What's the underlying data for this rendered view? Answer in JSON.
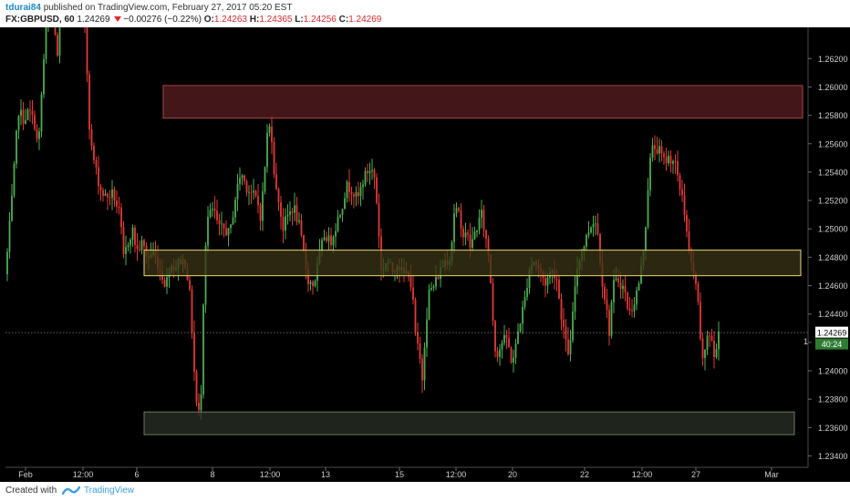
{
  "header": {
    "author": "tdurai84",
    "published_text": "published on TradingView.com, February 27, 2017 05:20 EST",
    "symbol": "FX:GBPUSD, 60",
    "last": "1.24269",
    "change": "−0.00276 (−0.22%)",
    "open_label": "O:",
    "open": "1.24263",
    "high_label": "H:",
    "high": "1.24365",
    "low_label": "L:",
    "low": "1.24256",
    "close_label": "C:",
    "close": "1.24269"
  },
  "footer": {
    "created_with": "Created with",
    "brand": "TradingView"
  },
  "colors": {
    "background": "#000000",
    "up": "#4caf50",
    "down": "#e53935",
    "axis_text": "#cfcfcf",
    "price_tag": "#ffffff",
    "countdown_tag": "#2e7d32"
  },
  "chart_data": {
    "type": "candlestick",
    "title": "",
    "xlabel": "",
    "ylabel": "",
    "ylim": [
      1.2332,
      1.2642
    ],
    "y_ticks": [
      "1.26200",
      "1.26000",
      "1.25800",
      "1.25600",
      "1.25400",
      "1.25200",
      "1.25000",
      "1.24800",
      "1.24600",
      "1.24400",
      "1.24200",
      "1.24000",
      "1.23800",
      "1.23600",
      "1.23400"
    ],
    "x_ticks": [
      "Feb",
      "12:00",
      "6",
      "8",
      "12:00",
      "13",
      "15",
      "12:00",
      "20",
      "22",
      "12:00",
      "27",
      "Mar"
    ],
    "current_price": "1.24269",
    "countdown": "40:24",
    "zones": [
      {
        "name": "supply-zone",
        "from": 1.2578,
        "to": 1.2601,
        "fill": "#5a1e22",
        "stroke": "#a84848"
      },
      {
        "name": "pivot-zone",
        "from": 1.2467,
        "to": 1.2485,
        "fill": "#3a3416",
        "stroke": "#e8d870"
      },
      {
        "name": "demand-zone",
        "from": 1.2355,
        "to": 1.2371,
        "fill": "#2a3026",
        "stroke": "#6d7a62"
      }
    ],
    "path": [
      [
        0,
        1.2438
      ],
      [
        6,
        1.2468
      ],
      [
        14,
        1.2528
      ],
      [
        20,
        1.2584
      ],
      [
        26,
        1.2577
      ],
      [
        32,
        1.2583
      ],
      [
        38,
        1.2574
      ],
      [
        42,
        1.2555
      ],
      [
        46,
        1.26
      ],
      [
        50,
        1.2638
      ],
      [
        55,
        1.2655
      ],
      [
        60,
        1.2642
      ],
      [
        63,
        1.262
      ],
      [
        67,
        1.266
      ],
      [
        90,
        1.266
      ],
      [
        94,
        1.264
      ],
      [
        97,
        1.2582
      ],
      [
        100,
        1.2558
      ],
      [
        104,
        1.2545
      ],
      [
        110,
        1.2528
      ],
      [
        116,
        1.2522
      ],
      [
        124,
        1.2525
      ],
      [
        132,
        1.2508
      ],
      [
        135,
        1.2478
      ],
      [
        140,
        1.249
      ],
      [
        145,
        1.25
      ],
      [
        150,
        1.2484
      ],
      [
        156,
        1.249
      ],
      [
        162,
        1.2479
      ],
      [
        168,
        1.2484
      ],
      [
        176,
        1.247
      ],
      [
        182,
        1.246
      ],
      [
        186,
        1.2475
      ],
      [
        192,
        1.2473
      ],
      [
        198,
        1.2478
      ],
      [
        204,
        1.2475
      ],
      [
        209,
        1.2448
      ],
      [
        212,
        1.241
      ],
      [
        215,
        1.2378
      ],
      [
        218,
        1.237
      ],
      [
        221,
        1.239
      ],
      [
        224,
        1.248
      ],
      [
        228,
        1.2508
      ],
      [
        234,
        1.2514
      ],
      [
        240,
        1.25
      ],
      [
        246,
        1.25
      ],
      [
        252,
        1.2496
      ],
      [
        258,
        1.2522
      ],
      [
        264,
        1.254
      ],
      [
        270,
        1.253
      ],
      [
        276,
        1.2525
      ],
      [
        282,
        1.252
      ],
      [
        286,
        1.2508
      ],
      [
        290,
        1.254
      ],
      [
        294,
        1.2575
      ],
      [
        298,
        1.2565
      ],
      [
        302,
        1.2528
      ],
      [
        306,
        1.252
      ],
      [
        310,
        1.25
      ],
      [
        316,
        1.251
      ],
      [
        322,
        1.2516
      ],
      [
        328,
        1.2502
      ],
      [
        334,
        1.2478
      ],
      [
        338,
        1.2464
      ],
      [
        344,
        1.246
      ],
      [
        350,
        1.248
      ],
      [
        356,
        1.2497
      ],
      [
        362,
        1.249
      ],
      [
        368,
        1.2502
      ],
      [
        374,
        1.2514
      ],
      [
        380,
        1.253
      ],
      [
        386,
        1.2528
      ],
      [
        392,
        1.252
      ],
      [
        398,
        1.2534
      ],
      [
        404,
        1.2542
      ],
      [
        410,
        1.254
      ],
      [
        414,
        1.2512
      ],
      [
        418,
        1.247
      ],
      [
        424,
        1.2478
      ],
      [
        430,
        1.247
      ],
      [
        436,
        1.2477
      ],
      [
        442,
        1.2467
      ],
      [
        448,
        1.247
      ],
      [
        452,
        1.2455
      ],
      [
        456,
        1.2422
      ],
      [
        460,
        1.241
      ],
      [
        463,
        1.2395
      ],
      [
        466,
        1.2425
      ],
      [
        470,
        1.2455
      ],
      [
        476,
        1.246
      ],
      [
        482,
        1.247
      ],
      [
        488,
        1.2478
      ],
      [
        494,
        1.248
      ],
      [
        498,
        1.2512
      ],
      [
        502,
        1.2514
      ],
      [
        506,
        1.2496
      ],
      [
        510,
        1.25
      ],
      [
        516,
        1.2487
      ],
      [
        522,
        1.25
      ],
      [
        528,
        1.251
      ],
      [
        532,
        1.2496
      ],
      [
        536,
        1.248
      ],
      [
        539,
        1.2455
      ],
      [
        542,
        1.2418
      ],
      [
        546,
        1.2412
      ],
      [
        550,
        1.242
      ],
      [
        556,
        1.2423
      ],
      [
        560,
        1.2408
      ],
      [
        564,
        1.241
      ],
      [
        568,
        1.2428
      ],
      [
        572,
        1.244
      ],
      [
        576,
        1.2452
      ],
      [
        580,
        1.2472
      ],
      [
        586,
        1.2478
      ],
      [
        592,
        1.247
      ],
      [
        598,
        1.2462
      ],
      [
        604,
        1.247
      ],
      [
        610,
        1.2468
      ],
      [
        614,
        1.2445
      ],
      [
        618,
        1.243
      ],
      [
        622,
        1.2412
      ],
      [
        626,
        1.242
      ],
      [
        630,
        1.2458
      ],
      [
        634,
        1.2478
      ],
      [
        640,
        1.2488
      ],
      [
        646,
        1.25
      ],
      [
        652,
        1.2508
      ],
      [
        656,
        1.2495
      ],
      [
        660,
        1.2465
      ],
      [
        664,
        1.2448
      ],
      [
        668,
        1.2428
      ],
      [
        672,
        1.246
      ],
      [
        678,
        1.2464
      ],
      [
        684,
        1.2458
      ],
      [
        690,
        1.244
      ],
      [
        696,
        1.245
      ],
      [
        700,
        1.246
      ],
      [
        704,
        1.2476
      ],
      [
        708,
        1.2504
      ],
      [
        712,
        1.2545
      ],
      [
        716,
        1.2558
      ],
      [
        722,
        1.2556
      ],
      [
        728,
        1.2548
      ],
      [
        734,
        1.255
      ],
      [
        740,
        1.2548
      ],
      [
        744,
        1.253
      ],
      [
        748,
        1.2525
      ],
      [
        752,
        1.2504
      ],
      [
        756,
        1.248
      ],
      [
        760,
        1.2468
      ],
      [
        764,
        1.246
      ],
      [
        768,
        1.242
      ],
      [
        772,
        1.2405
      ],
      [
        776,
        1.2428
      ],
      [
        780,
        1.2424
      ],
      [
        784,
        1.2405
      ],
      [
        788,
        1.2428
      ]
    ]
  }
}
